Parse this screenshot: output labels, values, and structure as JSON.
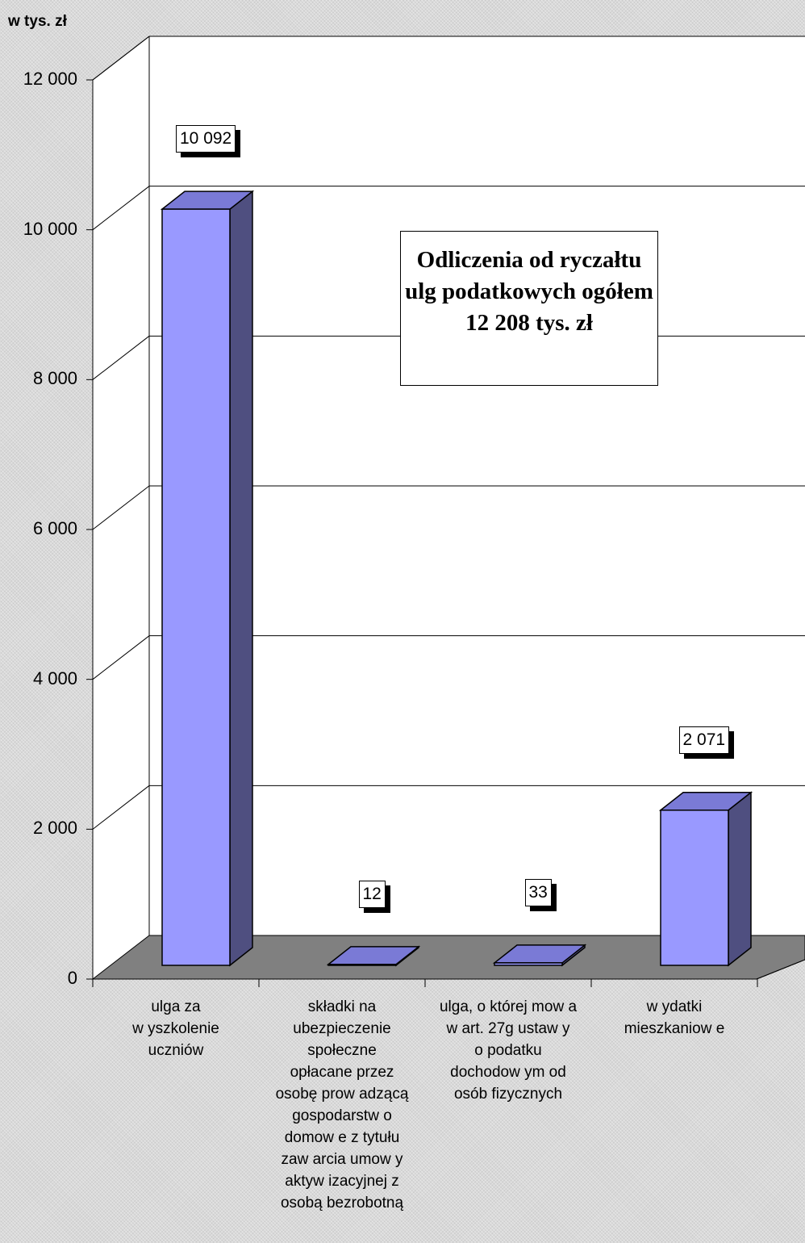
{
  "chart_data": {
    "type": "bar",
    "ylabel": "w tys. zł",
    "ylim": [
      0,
      12000
    ],
    "yticks": [
      0,
      2000,
      4000,
      6000,
      8000,
      10000,
      12000
    ],
    "ytick_labels": [
      "0",
      "2 000",
      "4 000",
      "6 000",
      "8 000",
      "10 000",
      "12 000"
    ],
    "categories": [
      "ulga za\nw yszkolenie\nuczniów",
      "składki na\nubezpieczenie\nspołeczne\nopłacane przez\nosobę prow adzącą\ngospodarstw o\ndomow e z tytułu\nzaw arcia umow y\naktyw izacyjnej z\nosobą bezrobotną",
      "ulga, o której mow a\nw  art. 27g ustaw y\no podatku\ndochodow ym od\nosób fizycznych",
      "w ydatki\nmieszkaniow e"
    ],
    "values": [
      10092,
      12,
      33,
      2071
    ],
    "data_labels": [
      "10 092",
      "12",
      "33",
      "2 071"
    ],
    "annotation": "Odliczenia od ryczałtu ulg podatkowych ogółem 12 208 tys. zł",
    "grid": true,
    "colors": {
      "bar_front": "#9999ff",
      "bar_side": "#4f4f80",
      "bar_top": "#7a7ad6",
      "floor": "#808080",
      "wall": "#ffffff"
    }
  }
}
